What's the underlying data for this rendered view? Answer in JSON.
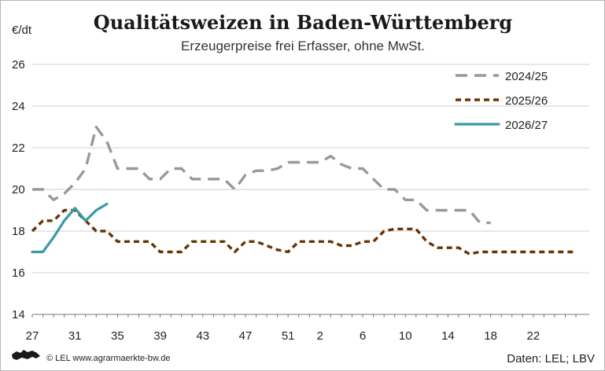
{
  "chart_data": {
    "type": "line",
    "title": "Qualitätsweizen in Baden-Württemberg",
    "subtitle": "Erzeugerpreise frei Erfasser, ohne MwSt.",
    "ylabel": "€/dt",
    "ylim": [
      14,
      26
    ],
    "yticks": [
      14,
      16,
      18,
      20,
      22,
      24,
      26
    ],
    "week_order": [
      27,
      28,
      29,
      30,
      31,
      32,
      33,
      34,
      35,
      36,
      37,
      38,
      39,
      40,
      41,
      42,
      43,
      44,
      45,
      46,
      47,
      48,
      49,
      50,
      51,
      52,
      1,
      2,
      3,
      4,
      5,
      6,
      7,
      8,
      9,
      10,
      11,
      12,
      13,
      14,
      15,
      16,
      17,
      18,
      19,
      20,
      21,
      22,
      23,
      24,
      25,
      26
    ],
    "xticks": [
      27,
      31,
      35,
      39,
      43,
      47,
      51,
      2,
      6,
      10,
      14,
      18,
      22
    ],
    "grid": "horizontal",
    "legend_position": "top-right",
    "series": [
      {
        "name": "2024/25",
        "color": "#999999",
        "dash": "dashed",
        "x": [
          27,
          28,
          29,
          30,
          31,
          32,
          33,
          34,
          35,
          36,
          37,
          38,
          39,
          40,
          41,
          42,
          43,
          44,
          45,
          46,
          47,
          48,
          49,
          50,
          51,
          52,
          1,
          2,
          3,
          4,
          5,
          6,
          7,
          8,
          9,
          10,
          11,
          12,
          13,
          14,
          15,
          16,
          17,
          18,
          19,
          20,
          21,
          22,
          23,
          24
        ],
        "values": [
          20.0,
          20.0,
          19.5,
          19.8,
          20.3,
          21.0,
          23.0,
          22.3,
          21.0,
          21.0,
          21.0,
          20.5,
          20.5,
          21.0,
          21.0,
          20.5,
          20.5,
          20.5,
          20.5,
          20.0,
          20.7,
          20.9,
          20.9,
          21.0,
          21.3,
          21.3,
          21.3,
          21.3,
          21.6,
          21.2,
          21.0,
          21.0,
          20.5,
          20.0,
          20.0,
          19.5,
          19.5,
          19.0,
          19.0,
          19.0,
          19.0,
          19.0,
          18.4,
          18.4,
          null,
          null,
          null,
          null,
          null,
          null
        ]
      },
      {
        "name": "2025/26",
        "color": "#6b3300",
        "dash": "dotted",
        "x": [
          27,
          28,
          29,
          30,
          31,
          32,
          33,
          34,
          35,
          36,
          37,
          38,
          39,
          40,
          41,
          42,
          43,
          44,
          45,
          46,
          47,
          48,
          49,
          50,
          51,
          52,
          1,
          2,
          3,
          4,
          5,
          6,
          7,
          8,
          9,
          10,
          11,
          12,
          13,
          14,
          15,
          16,
          17,
          18,
          19,
          20,
          21,
          22,
          23,
          24,
          25,
          26
        ],
        "values": [
          18.0,
          18.5,
          18.5,
          19.0,
          19.0,
          18.5,
          18.0,
          18.0,
          17.5,
          17.5,
          17.5,
          17.5,
          17.0,
          17.0,
          17.0,
          17.5,
          17.5,
          17.5,
          17.5,
          17.0,
          17.5,
          17.5,
          17.3,
          17.1,
          17.0,
          17.5,
          17.5,
          17.5,
          17.5,
          17.3,
          17.3,
          17.5,
          17.5,
          18.0,
          18.1,
          18.1,
          18.1,
          17.5,
          17.2,
          17.2,
          17.2,
          16.9,
          17.0,
          17.0,
          17.0,
          17.0,
          17.0,
          17.0,
          17.0,
          17.0,
          17.0,
          17.0
        ]
      },
      {
        "name": "2026/27",
        "color": "#3a9aa6",
        "dash": "solid",
        "x": [
          27,
          28,
          29,
          30,
          31,
          32,
          33,
          34
        ],
        "values": [
          17.0,
          17.0,
          17.7,
          18.5,
          19.1,
          18.5,
          19.0,
          19.3
        ]
      }
    ]
  },
  "footer": {
    "copyright": "© LEL www.agrarmaerkte-bw.de",
    "source": "Daten: LEL; LBV"
  }
}
